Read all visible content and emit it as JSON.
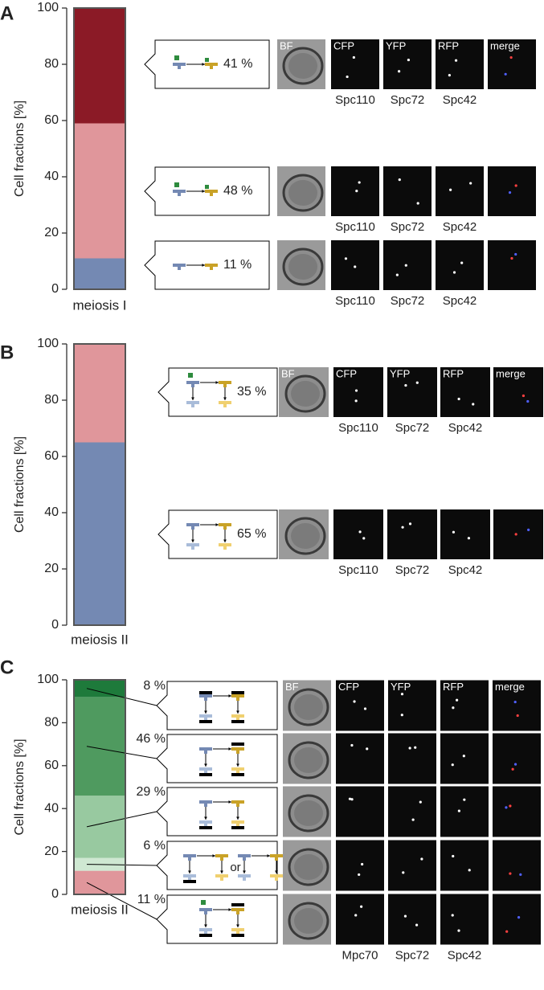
{
  "chart_data": [
    {
      "type": "bar",
      "stacked": true,
      "label": "A",
      "ylabel": "Cell fractions [%]",
      "categories": [
        "meiosis I"
      ],
      "ylim": [
        0,
        100
      ],
      "yticks": [
        0,
        20,
        40,
        60,
        80,
        100
      ],
      "series": [
        {
          "color": "#7489b3",
          "values": [
            11
          ],
          "value_labels": [
            "11 %"
          ]
        },
        {
          "color": "#e0969b",
          "values": [
            48
          ],
          "value_labels": [
            "48 %"
          ]
        },
        {
          "color": "#8b1a26",
          "values": [
            41
          ],
          "value_labels": [
            "41 %"
          ]
        }
      ],
      "channels": [
        "BF",
        "CFP",
        "YFP",
        "RFP",
        "merge"
      ],
      "markers": [
        "Spc110",
        "Spc72",
        "Spc42"
      ]
    },
    {
      "type": "bar",
      "stacked": true,
      "label": "B",
      "ylabel": "Cell fractions [%]",
      "categories": [
        "meiosis II"
      ],
      "ylim": [
        0,
        100
      ],
      "yticks": [
        0,
        20,
        40,
        60,
        80,
        100
      ],
      "series": [
        {
          "color": "#7489b3",
          "values": [
            65
          ],
          "value_labels": [
            "65 %"
          ]
        },
        {
          "color": "#e0969b",
          "values": [
            35
          ],
          "value_labels": [
            "35 %"
          ]
        }
      ],
      "channels": [
        "BF",
        "CFP",
        "YFP",
        "RFP",
        "merge"
      ],
      "markers": [
        "Spc110",
        "Spc72",
        "Spc42"
      ]
    },
    {
      "type": "bar",
      "stacked": true,
      "label": "C",
      "ylabel": "Cell fractions [%]",
      "categories": [
        "meiosis II"
      ],
      "ylim": [
        0,
        100
      ],
      "yticks": [
        0,
        20,
        40,
        60,
        80,
        100
      ],
      "series": [
        {
          "color": "#e0969b",
          "values": [
            11
          ],
          "value_labels": [
            "11 %"
          ]
        },
        {
          "color": "#cfe8d2",
          "values": [
            6
          ],
          "value_labels": [
            "6 %"
          ]
        },
        {
          "color": "#98c9a0",
          "values": [
            29
          ],
          "value_labels": [
            "29 %"
          ]
        },
        {
          "color": "#4f9a5f",
          "values": [
            46
          ],
          "value_labels": [
            "46 %"
          ]
        },
        {
          "color": "#1e7a3b",
          "values": [
            8
          ],
          "value_labels": [
            "8 %"
          ]
        }
      ],
      "channels": [
        "BF",
        "CFP",
        "YFP",
        "RFP",
        "merge"
      ],
      "markers": [
        "Mpc70",
        "Spc72",
        "Spc42"
      ],
      "diagram_text": "or"
    }
  ]
}
